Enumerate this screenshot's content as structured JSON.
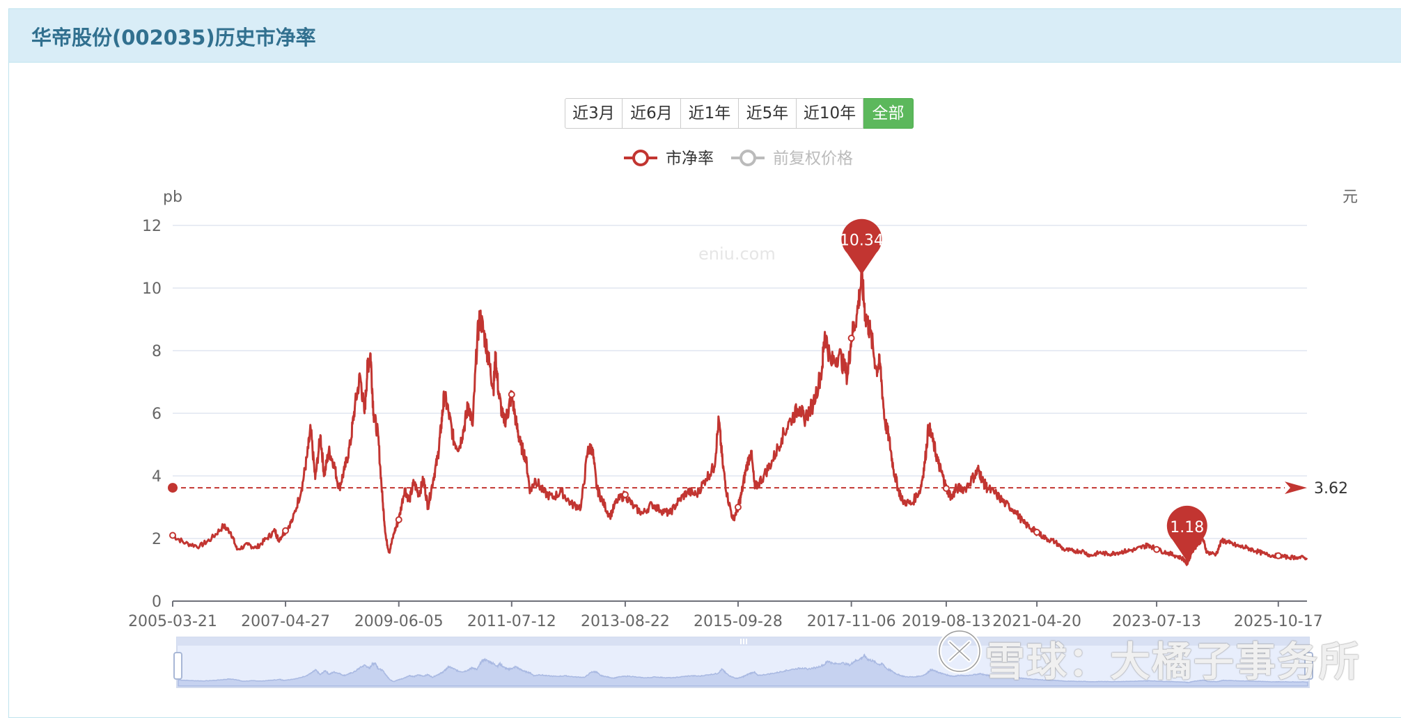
{
  "panel": {
    "title": "华帝股份(002035)历史市净率"
  },
  "range_buttons": [
    {
      "label": "近3月",
      "active": false
    },
    {
      "label": "近6月",
      "active": false
    },
    {
      "label": "近1年",
      "active": false
    },
    {
      "label": "近5年",
      "active": false
    },
    {
      "label": "近10年",
      "active": false
    },
    {
      "label": "全部",
      "active": true
    }
  ],
  "watermark": {
    "site": "eniu.com",
    "xueqiu": "雪球：大橘子事务所"
  },
  "colors": {
    "series": "#c23531",
    "muted": "#bbbbbb",
    "grid": "#e0e6f1",
    "button_active": "#5cb85c",
    "header": "#d9edf7"
  },
  "chart_data": {
    "type": "line",
    "legend": [
      {
        "name": "市净率",
        "active": true
      },
      {
        "name": "前复权价格",
        "active": false
      }
    ],
    "left_axis": {
      "unit": "pb",
      "ticks": [
        0,
        2,
        4,
        6,
        8,
        10,
        12
      ],
      "range": [
        0,
        12
      ]
    },
    "right_axis": {
      "unit": "元"
    },
    "x_ticks": [
      "2005-03-21",
      "2007-04-27",
      "2009-06-05",
      "2011-07-12",
      "2013-08-22",
      "2015-09-28",
      "2017-11-06",
      "2019-08-13",
      "2021-04-20",
      "2023-07-13",
      "2025-10-17"
    ],
    "x_range": [
      "2005-03-21",
      "2026-04-30"
    ],
    "average_line": {
      "value": 3.62,
      "label": "3.62"
    },
    "max_marker": {
      "date": "2018-01-15",
      "value": 10.34,
      "label": "10.34"
    },
    "min_marker": {
      "date": "2024-02-05",
      "value": 1.18,
      "label": "1.18"
    },
    "series": [
      {
        "name": "市净率",
        "points": [
          [
            "2005-03-21",
            2.1
          ],
          [
            "2005-06-15",
            1.85
          ],
          [
            "2005-09-20",
            1.75
          ],
          [
            "2005-12-10",
            2.0
          ],
          [
            "2006-03-01",
            2.4
          ],
          [
            "2006-04-20",
            2.2
          ],
          [
            "2006-06-01",
            1.65
          ],
          [
            "2006-08-15",
            1.8
          ],
          [
            "2006-10-10",
            1.7
          ],
          [
            "2006-12-20",
            2.0
          ],
          [
            "2007-02-15",
            2.25
          ],
          [
            "2007-03-10",
            1.95
          ],
          [
            "2007-04-27",
            2.25
          ],
          [
            "2007-06-15",
            2.6
          ],
          [
            "2007-08-15",
            3.6
          ],
          [
            "2007-09-20",
            4.6
          ],
          [
            "2007-10-15",
            5.5
          ],
          [
            "2007-11-15",
            3.9
          ],
          [
            "2007-12-20",
            5.3
          ],
          [
            "2008-01-15",
            4.0
          ],
          [
            "2008-02-15",
            4.8
          ],
          [
            "2008-03-20",
            4.4
          ],
          [
            "2008-04-25",
            3.6
          ],
          [
            "2008-06-01",
            4.2
          ],
          [
            "2008-07-10",
            5.0
          ],
          [
            "2008-08-10",
            6.2
          ],
          [
            "2008-09-15",
            7.2
          ],
          [
            "2008-10-15",
            6.0
          ],
          [
            "2008-11-05",
            7.5
          ],
          [
            "2008-11-25",
            7.9
          ],
          [
            "2008-12-15",
            6.0
          ],
          [
            "2009-01-15",
            5.3
          ],
          [
            "2009-02-15",
            3.2
          ],
          [
            "2009-03-10",
            2.0
          ],
          [
            "2009-04-01",
            1.55
          ],
          [
            "2009-05-05",
            2.2
          ],
          [
            "2009-06-05",
            2.6
          ],
          [
            "2009-07-15",
            3.6
          ],
          [
            "2009-08-15",
            3.2
          ],
          [
            "2009-09-15",
            3.8
          ],
          [
            "2009-10-20",
            3.4
          ],
          [
            "2009-11-20",
            3.9
          ],
          [
            "2009-12-20",
            3.0
          ],
          [
            "2010-01-25",
            3.9
          ],
          [
            "2010-02-25",
            4.6
          ],
          [
            "2010-03-20",
            5.6
          ],
          [
            "2010-04-10",
            6.6
          ],
          [
            "2010-05-10",
            6.0
          ],
          [
            "2010-06-15",
            5.1
          ],
          [
            "2010-07-20",
            4.9
          ],
          [
            "2010-08-25",
            5.6
          ],
          [
            "2010-09-20",
            6.3
          ],
          [
            "2010-10-20",
            5.6
          ],
          [
            "2010-11-20",
            8.4
          ],
          [
            "2010-12-10",
            9.1
          ],
          [
            "2011-01-15",
            8.3
          ],
          [
            "2011-02-10",
            7.6
          ],
          [
            "2011-03-10",
            6.8
          ],
          [
            "2011-03-25",
            7.8
          ],
          [
            "2011-04-15",
            6.6
          ],
          [
            "2011-05-20",
            5.7
          ],
          [
            "2011-06-15",
            6.0
          ],
          [
            "2011-07-12",
            6.6
          ],
          [
            "2011-08-15",
            5.6
          ],
          [
            "2011-09-10",
            5.0
          ],
          [
            "2011-10-15",
            4.6
          ],
          [
            "2011-11-15",
            3.5
          ],
          [
            "2011-12-20",
            3.9
          ],
          [
            "2012-02-10",
            3.5
          ],
          [
            "2012-04-15",
            3.3
          ],
          [
            "2012-06-15",
            3.5
          ],
          [
            "2012-08-20",
            3.1
          ],
          [
            "2012-10-25",
            3.0
          ],
          [
            "2012-12-10",
            4.8
          ],
          [
            "2013-01-10",
            4.9
          ],
          [
            "2013-02-10",
            3.6
          ],
          [
            "2013-03-20",
            3.2
          ],
          [
            "2013-05-10",
            2.7
          ],
          [
            "2013-06-25",
            3.2
          ],
          [
            "2013-08-22",
            3.4
          ],
          [
            "2013-10-20",
            3.0
          ],
          [
            "2013-12-20",
            2.8
          ],
          [
            "2014-02-20",
            3.1
          ],
          [
            "2014-04-20",
            2.9
          ],
          [
            "2014-06-20",
            2.8
          ],
          [
            "2014-08-20",
            3.2
          ],
          [
            "2014-10-20",
            3.5
          ],
          [
            "2014-12-20",
            3.4
          ],
          [
            "2015-02-20",
            3.9
          ],
          [
            "2015-04-20",
            4.3
          ],
          [
            "2015-05-20",
            5.8
          ],
          [
            "2015-06-15",
            4.4
          ],
          [
            "2015-07-15",
            3.4
          ],
          [
            "2015-08-25",
            2.6
          ],
          [
            "2015-09-28",
            3.0
          ],
          [
            "2015-10-20",
            3.4
          ],
          [
            "2015-11-20",
            4.2
          ],
          [
            "2015-12-25",
            4.8
          ],
          [
            "2016-01-20",
            3.6
          ],
          [
            "2016-03-20",
            4.0
          ],
          [
            "2016-05-20",
            4.5
          ],
          [
            "2016-07-20",
            5.2
          ],
          [
            "2016-09-20",
            5.8
          ],
          [
            "2016-11-20",
            6.2
          ],
          [
            "2016-12-20",
            5.8
          ],
          [
            "2017-02-20",
            6.3
          ],
          [
            "2017-04-20",
            7.4
          ],
          [
            "2017-05-10",
            8.6
          ],
          [
            "2017-06-20",
            7.6
          ],
          [
            "2017-08-15",
            7.9
          ],
          [
            "2017-10-10",
            7.2
          ],
          [
            "2017-11-06",
            8.4
          ],
          [
            "2017-12-15",
            9.2
          ],
          [
            "2018-01-15",
            10.34
          ],
          [
            "2018-02-10",
            9.1
          ],
          [
            "2018-03-15",
            8.6
          ],
          [
            "2018-04-25",
            7.4
          ],
          [
            "2018-05-20",
            7.6
          ],
          [
            "2018-06-20",
            5.8
          ],
          [
            "2018-07-20",
            5.2
          ],
          [
            "2018-08-20",
            4.2
          ],
          [
            "2018-09-20",
            3.6
          ],
          [
            "2018-10-20",
            3.2
          ],
          [
            "2018-12-20",
            3.1
          ],
          [
            "2019-02-20",
            3.6
          ],
          [
            "2019-03-20",
            4.4
          ],
          [
            "2019-04-15",
            5.6
          ],
          [
            "2019-05-20",
            5.0
          ],
          [
            "2019-06-20",
            4.4
          ],
          [
            "2019-07-20",
            4.0
          ],
          [
            "2019-08-13",
            3.6
          ],
          [
            "2019-09-20",
            3.3
          ],
          [
            "2019-10-20",
            3.6
          ],
          [
            "2019-12-20",
            3.6
          ],
          [
            "2020-02-20",
            4.0
          ],
          [
            "2020-03-20",
            4.2
          ],
          [
            "2020-04-20",
            3.8
          ],
          [
            "2020-05-20",
            3.6
          ],
          [
            "2020-07-20",
            3.4
          ],
          [
            "2020-09-20",
            3.1
          ],
          [
            "2020-11-20",
            2.9
          ],
          [
            "2021-01-20",
            2.5
          ],
          [
            "2021-03-20",
            2.3
          ],
          [
            "2021-04-20",
            2.2
          ],
          [
            "2021-06-20",
            2.0
          ],
          [
            "2021-08-20",
            1.9
          ],
          [
            "2021-10-20",
            1.65
          ],
          [
            "2021-12-20",
            1.6
          ],
          [
            "2022-02-20",
            1.6
          ],
          [
            "2022-04-20",
            1.45
          ],
          [
            "2022-06-20",
            1.55
          ],
          [
            "2022-08-20",
            1.5
          ],
          [
            "2022-10-20",
            1.55
          ],
          [
            "2022-12-20",
            1.6
          ],
          [
            "2023-02-20",
            1.65
          ],
          [
            "2023-04-20",
            1.75
          ],
          [
            "2023-05-20",
            1.8
          ],
          [
            "2023-07-13",
            1.65
          ],
          [
            "2023-09-20",
            1.55
          ],
          [
            "2023-11-20",
            1.45
          ],
          [
            "2024-01-10",
            1.35
          ],
          [
            "2024-02-05",
            1.18
          ],
          [
            "2024-03-10",
            1.6
          ],
          [
            "2024-04-20",
            1.85
          ],
          [
            "2024-05-20",
            2.0
          ],
          [
            "2024-06-20",
            1.55
          ],
          [
            "2024-08-20",
            1.5
          ],
          [
            "2024-09-30",
            1.95
          ],
          [
            "2024-11-20",
            1.85
          ],
          [
            "2025-01-20",
            1.75
          ],
          [
            "2025-03-20",
            1.7
          ],
          [
            "2025-05-20",
            1.6
          ],
          [
            "2025-07-20",
            1.5
          ],
          [
            "2025-09-20",
            1.45
          ],
          [
            "2025-10-17",
            1.45
          ],
          [
            "2025-12-20",
            1.4
          ],
          [
            "2026-02-20",
            1.4
          ],
          [
            "2026-04-30",
            1.38
          ]
        ]
      }
    ]
  }
}
